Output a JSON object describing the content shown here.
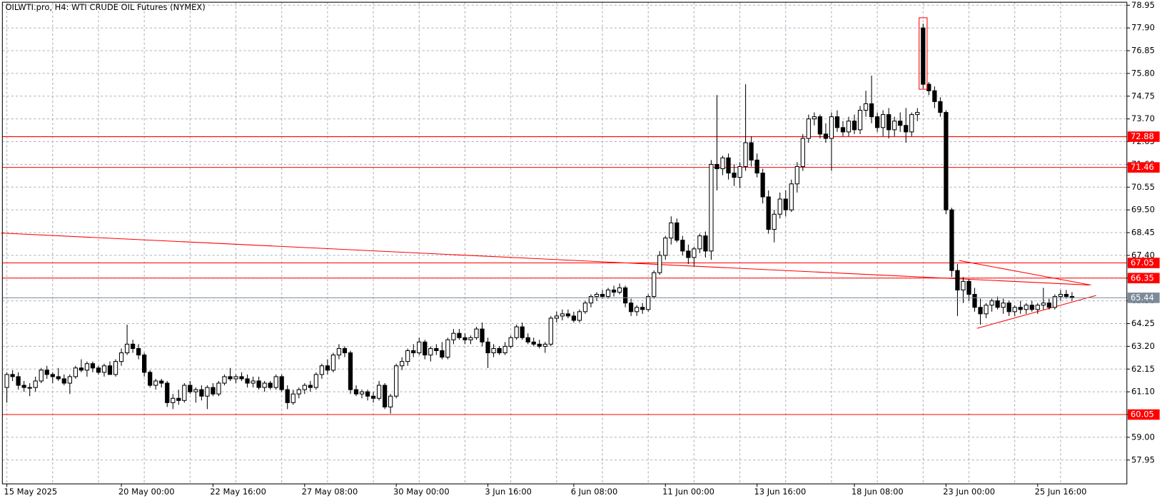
{
  "chart_data": {
    "type": "candlestick",
    "title": "OILWTI.pro, H4:  WTI CRUDE OIL Futures (NYMEX)",
    "up_color": "#ffffff",
    "down_color": "#000000",
    "outline_color": "#000000",
    "line_color": "#ff0000",
    "last_price_color": "#7d8a9a",
    "grid": true,
    "ylim": [
      56.85,
      79.19
    ],
    "yticks": [
      78.95,
      {
        "value": 77.9,
        "label": "77.90"
      },
      76.85,
      {
        "value": 75.8,
        "label": "75.80"
      },
      74.75,
      {
        "value": 73.7,
        "label": "73.70"
      },
      72.65,
      {
        "value": 71.6,
        "label": "71.60"
      },
      70.55,
      {
        "value": 69.5,
        "label": "69.50"
      },
      68.45,
      {
        "value": 67.4,
        "label": "67.40"
      },
      66.35,
      {
        "value": 65.3,
        "label": "65.30"
      },
      64.25,
      {
        "value": 63.2,
        "label": "63.20"
      },
      62.15,
      {
        "value": 61.1,
        "label": "61.10"
      },
      60.05,
      {
        "value": 59.0,
        "label": "59.00"
      },
      57.95
    ],
    "hlines": [
      72.88,
      71.46,
      67.05,
      66.35,
      60.05
    ],
    "last_price": 65.44,
    "trendlines": [
      {
        "x": [
          -1,
          189
        ],
        "y": [
          68.43,
          66.03
        ]
      },
      {
        "x": [
          166.3,
          189.3
        ],
        "y": [
          67.16,
          66.03
        ]
      },
      {
        "x": [
          169.4,
          190.2
        ],
        "y": [
          64.03,
          65.55
        ]
      }
    ],
    "rectangles": [
      {
        "x": [
          159.3,
          160.7
        ],
        "y": [
          75.07,
          78.37
        ]
      }
    ],
    "categories": [
      "15 May 2025",
      null,
      null,
      null,
      null,
      null,
      null,
      null,
      null,
      null,
      null,
      null,
      null,
      null,
      null,
      null,
      null,
      null,
      null,
      null,
      "20 May 00:00",
      null,
      null,
      null,
      null,
      null,
      null,
      null,
      null,
      null,
      null,
      null,
      null,
      null,
      null,
      null,
      "22 May 16:00",
      null,
      null,
      null,
      null,
      null,
      null,
      null,
      null,
      null,
      null,
      null,
      null,
      null,
      null,
      null,
      "27 May 08:00",
      null,
      null,
      null,
      null,
      null,
      null,
      null,
      null,
      null,
      null,
      null,
      null,
      null,
      null,
      null,
      "30 May 00:00",
      null,
      null,
      null,
      null,
      null,
      null,
      null,
      null,
      null,
      null,
      null,
      null,
      null,
      null,
      null,
      "3 Jun 16:00",
      null,
      null,
      null,
      null,
      null,
      null,
      null,
      null,
      null,
      null,
      null,
      null,
      null,
      null,
      "6 Jun 08:00",
      null,
      null,
      null,
      null,
      null,
      null,
      null,
      null,
      null,
      null,
      null,
      null,
      null,
      null,
      null,
      "11 Jun 00:00",
      null,
      null,
      null,
      null,
      null,
      null,
      null,
      null,
      null,
      null,
      null,
      null,
      null,
      null,
      null,
      "13 Jun 16:00",
      null,
      null,
      null,
      null,
      null,
      null,
      null,
      null,
      null,
      null,
      null,
      null,
      null,
      null,
      null,
      null,
      "18 Jun 08:00",
      null,
      null,
      null,
      null,
      null,
      null,
      null,
      null,
      null,
      null,
      null,
      null,
      null,
      null,
      null,
      "23 Jun 00:00",
      null,
      null,
      null,
      null,
      null,
      null,
      null,
      null,
      null,
      null,
      null,
      null,
      null,
      null,
      null,
      "25 Jun 16:00",
      null,
      null,
      null,
      null,
      null,
      null
    ],
    "candles": [
      [
        61.3,
        62.0,
        60.6,
        61.9
      ],
      [
        61.9,
        62.1,
        61.6,
        61.8
      ],
      [
        61.8,
        62.0,
        61.2,
        61.4
      ],
      [
        61.4,
        61.6,
        61.1,
        61.3
      ],
      [
        61.3,
        61.5,
        60.9,
        61.3
      ],
      [
        61.3,
        61.8,
        61.1,
        61.6
      ],
      [
        61.6,
        62.2,
        61.5,
        62.1
      ],
      [
        62.1,
        62.3,
        61.7,
        61.9
      ],
      [
        61.9,
        62.0,
        61.5,
        61.8
      ],
      [
        61.8,
        62.2,
        61.6,
        61.7
      ],
      [
        61.7,
        61.9,
        61.4,
        61.5
      ],
      [
        61.5,
        61.9,
        61.0,
        61.8
      ],
      [
        61.8,
        62.3,
        61.7,
        62.2
      ],
      [
        62.2,
        62.6,
        62.0,
        62.1
      ],
      [
        62.1,
        62.5,
        61.8,
        62.4
      ],
      [
        62.4,
        62.5,
        62.0,
        62.2
      ],
      [
        62.2,
        62.3,
        61.9,
        62.0
      ],
      [
        62.0,
        62.4,
        61.8,
        62.3
      ],
      [
        62.3,
        62.5,
        61.9,
        61.9
      ],
      [
        61.9,
        62.6,
        61.8,
        62.5
      ],
      [
        62.5,
        63.1,
        62.3,
        62.9
      ],
      [
        62.9,
        64.2,
        62.8,
        63.3
      ],
      [
        63.3,
        63.5,
        62.9,
        63.1
      ],
      [
        63.1,
        63.3,
        62.6,
        62.8
      ],
      [
        62.8,
        62.9,
        61.8,
        62.0
      ],
      [
        62.0,
        62.1,
        61.3,
        61.4
      ],
      [
        61.4,
        61.7,
        61.2,
        61.6
      ],
      [
        61.6,
        61.7,
        61.3,
        61.5
      ],
      [
        61.5,
        61.6,
        60.4,
        60.6
      ],
      [
        60.6,
        61.0,
        60.3,
        60.8
      ],
      [
        60.8,
        61.2,
        60.5,
        60.7
      ],
      [
        60.7,
        61.5,
        60.6,
        61.4
      ],
      [
        61.4,
        61.6,
        61.0,
        61.1
      ],
      [
        61.1,
        61.3,
        60.6,
        61.2
      ],
      [
        61.2,
        61.4,
        60.7,
        60.9
      ],
      [
        60.9,
        61.4,
        60.3,
        61.3
      ],
      [
        61.3,
        61.5,
        60.9,
        61.0
      ],
      [
        61.0,
        61.6,
        60.9,
        61.5
      ],
      [
        61.5,
        61.9,
        61.4,
        61.8
      ],
      [
        61.8,
        62.2,
        61.6,
        61.7
      ],
      [
        61.7,
        61.9,
        61.5,
        61.8
      ],
      [
        61.8,
        62.0,
        61.6,
        61.7
      ],
      [
        61.7,
        61.9,
        61.3,
        61.5
      ],
      [
        61.5,
        61.8,
        61.3,
        61.6
      ],
      [
        61.6,
        61.8,
        61.2,
        61.3
      ],
      [
        61.3,
        61.6,
        61.1,
        61.5
      ],
      [
        61.5,
        61.6,
        61.2,
        61.3
      ],
      [
        61.3,
        61.9,
        61.2,
        61.8
      ],
      [
        61.8,
        61.9,
        61.1,
        61.2
      ],
      [
        61.2,
        61.4,
        60.3,
        60.6
      ],
      [
        60.6,
        61.2,
        60.5,
        61.0
      ],
      [
        61.0,
        61.3,
        60.8,
        61.2
      ],
      [
        61.2,
        61.5,
        61.0,
        61.4
      ],
      [
        61.4,
        61.6,
        61.1,
        61.3
      ],
      [
        61.3,
        62.0,
        61.2,
        61.9
      ],
      [
        61.9,
        62.4,
        61.7,
        62.3
      ],
      [
        62.3,
        62.6,
        61.9,
        62.1
      ],
      [
        62.1,
        62.9,
        62.0,
        62.8
      ],
      [
        62.8,
        63.3,
        62.6,
        63.1
      ],
      [
        63.1,
        63.2,
        62.7,
        62.9
      ],
      [
        62.9,
        63.0,
        61.0,
        61.2
      ],
      [
        61.2,
        61.4,
        60.9,
        61.0
      ],
      [
        61.0,
        61.2,
        60.8,
        61.1
      ],
      [
        61.1,
        61.2,
        60.7,
        60.9
      ],
      [
        60.9,
        61.1,
        60.6,
        60.8
      ],
      [
        60.8,
        61.6,
        60.7,
        61.4
      ],
      [
        61.4,
        61.5,
        60.3,
        60.4
      ],
      [
        60.4,
        61.0,
        60.1,
        60.9
      ],
      [
        60.9,
        62.4,
        60.8,
        62.3
      ],
      [
        62.3,
        62.7,
        62.1,
        62.5
      ],
      [
        62.5,
        63.1,
        62.3,
        63.0
      ],
      [
        63.0,
        63.3,
        62.7,
        62.9
      ],
      [
        62.9,
        63.6,
        62.8,
        63.4
      ],
      [
        63.4,
        63.5,
        62.6,
        62.8
      ],
      [
        62.8,
        63.2,
        62.5,
        63.1
      ],
      [
        63.1,
        63.3,
        62.8,
        63.0
      ],
      [
        63.0,
        63.4,
        62.6,
        62.7
      ],
      [
        62.7,
        63.6,
        62.6,
        63.5
      ],
      [
        63.5,
        64.0,
        63.3,
        63.8
      ],
      [
        63.8,
        64.0,
        63.5,
        63.6
      ],
      [
        63.6,
        63.8,
        63.3,
        63.5
      ],
      [
        63.5,
        63.7,
        63.3,
        63.6
      ],
      [
        63.6,
        64.1,
        63.5,
        64.0
      ],
      [
        64.0,
        64.3,
        63.2,
        63.4
      ],
      [
        63.4,
        63.6,
        62.2,
        62.9
      ],
      [
        62.9,
        63.3,
        62.7,
        63.1
      ],
      [
        63.1,
        63.2,
        62.8,
        62.9
      ],
      [
        62.9,
        63.4,
        62.8,
        63.2
      ],
      [
        63.2,
        63.7,
        63.1,
        63.6
      ],
      [
        63.6,
        64.2,
        63.5,
        64.1
      ],
      [
        64.1,
        64.3,
        63.5,
        63.6
      ],
      [
        63.6,
        63.8,
        63.3,
        63.4
      ],
      [
        63.4,
        63.6,
        63.2,
        63.3
      ],
      [
        63.3,
        63.5,
        63.1,
        63.2
      ],
      [
        63.2,
        63.4,
        62.9,
        63.3
      ],
      [
        63.3,
        64.6,
        63.2,
        64.5
      ],
      [
        64.5,
        64.8,
        64.3,
        64.6
      ],
      [
        64.6,
        64.9,
        64.4,
        64.7
      ],
      [
        64.7,
        64.9,
        64.5,
        64.6
      ],
      [
        64.6,
        64.8,
        64.3,
        64.4
      ],
      [
        64.4,
        64.9,
        64.3,
        64.8
      ],
      [
        64.8,
        65.3,
        64.7,
        65.2
      ],
      [
        65.2,
        65.6,
        65.0,
        65.5
      ],
      [
        65.5,
        65.7,
        65.3,
        65.6
      ],
      [
        65.6,
        65.8,
        65.4,
        65.5
      ],
      [
        65.5,
        65.9,
        65.4,
        65.8
      ],
      [
        65.8,
        66.0,
        65.5,
        65.7
      ],
      [
        65.7,
        66.1,
        65.6,
        65.9
      ],
      [
        65.9,
        66.0,
        65.0,
        65.2
      ],
      [
        65.2,
        65.4,
        64.6,
        64.8
      ],
      [
        64.8,
        65.1,
        64.6,
        65.0
      ],
      [
        65.0,
        65.2,
        64.7,
        64.9
      ],
      [
        64.9,
        65.6,
        64.8,
        65.5
      ],
      [
        65.5,
        66.7,
        65.4,
        66.6
      ],
      [
        66.6,
        67.6,
        66.5,
        67.4
      ],
      [
        67.4,
        68.3,
        67.2,
        68.2
      ],
      [
        68.2,
        69.2,
        67.9,
        68.9
      ],
      [
        68.9,
        69.1,
        68.0,
        68.1
      ],
      [
        68.1,
        68.3,
        67.4,
        67.6
      ],
      [
        67.6,
        67.9,
        67.0,
        67.3
      ],
      [
        67.3,
        67.8,
        66.9,
        67.7
      ],
      [
        67.7,
        68.4,
        67.5,
        68.3
      ],
      [
        68.3,
        68.5,
        67.3,
        67.6
      ],
      [
        67.6,
        71.8,
        67.2,
        71.6
      ],
      [
        71.6,
        74.8,
        70.4,
        71.4
      ],
      [
        71.4,
        72.0,
        71.1,
        71.9
      ],
      [
        71.9,
        72.1,
        70.9,
        71.2
      ],
      [
        71.2,
        71.6,
        70.6,
        71.0
      ],
      [
        71.0,
        71.7,
        70.5,
        71.5
      ],
      [
        71.5,
        75.3,
        71.3,
        72.6
      ],
      [
        72.6,
        72.9,
        71.5,
        71.8
      ],
      [
        71.8,
        72.1,
        71.0,
        71.2
      ],
      [
        71.2,
        71.4,
        69.8,
        70.1
      ],
      [
        70.1,
        70.4,
        68.4,
        68.6
      ],
      [
        68.6,
        69.5,
        68.0,
        69.3
      ],
      [
        69.3,
        70.3,
        69.1,
        70.0
      ],
      [
        70.0,
        70.4,
        69.2,
        69.5
      ],
      [
        69.5,
        70.9,
        69.4,
        70.7
      ],
      [
        70.7,
        71.7,
        70.3,
        71.5
      ],
      [
        71.5,
        73.0,
        71.3,
        72.8
      ],
      [
        72.8,
        73.9,
        72.6,
        73.7
      ],
      [
        73.7,
        74.0,
        73.4,
        73.8
      ],
      [
        73.8,
        73.9,
        72.8,
        73.0
      ],
      [
        73.0,
        73.5,
        72.6,
        72.8
      ],
      [
        72.8,
        74.0,
        71.3,
        73.8
      ],
      [
        73.8,
        74.1,
        73.1,
        73.3
      ],
      [
        73.3,
        73.6,
        72.9,
        73.1
      ],
      [
        73.1,
        73.8,
        72.9,
        73.6
      ],
      [
        73.6,
        73.9,
        73.0,
        73.2
      ],
      [
        73.2,
        74.3,
        73.0,
        74.1
      ],
      [
        74.1,
        75.0,
        73.8,
        74.4
      ],
      [
        74.4,
        75.7,
        73.5,
        73.8
      ],
      [
        73.8,
        74.0,
        73.1,
        73.3
      ],
      [
        73.3,
        74.1,
        72.9,
        73.9
      ],
      [
        73.9,
        74.2,
        72.8,
        73.2
      ],
      [
        73.2,
        73.8,
        72.9,
        73.6
      ],
      [
        73.6,
        74.0,
        73.1,
        73.4
      ],
      [
        73.4,
        74.2,
        72.6,
        73.1
      ],
      [
        73.1,
        74.0,
        72.9,
        73.9
      ],
      [
        73.9,
        74.2,
        73.6,
        74.0
      ],
      [
        77.9,
        78.1,
        75.1,
        75.3
      ],
      [
        75.3,
        75.4,
        74.8,
        75.0
      ],
      [
        75.0,
        75.2,
        74.2,
        74.5
      ],
      [
        74.5,
        74.7,
        73.8,
        74.0
      ],
      [
        74.0,
        74.1,
        69.3,
        69.5
      ],
      [
        69.5,
        69.6,
        66.4,
        66.7
      ],
      [
        66.7,
        67.0,
        64.6,
        65.8
      ],
      [
        65.8,
        66.4,
        65.2,
        66.2
      ],
      [
        66.2,
        66.3,
        65.3,
        65.6
      ],
      [
        65.6,
        65.9,
        64.8,
        65.0
      ],
      [
        65.0,
        65.4,
        64.2,
        64.7
      ],
      [
        64.7,
        65.2,
        64.5,
        65.1
      ],
      [
        65.1,
        65.4,
        64.8,
        65.3
      ],
      [
        65.3,
        65.5,
        64.9,
        65.0
      ],
      [
        65.0,
        65.4,
        64.7,
        65.2
      ],
      [
        65.2,
        65.3,
        64.6,
        64.8
      ],
      [
        64.8,
        65.1,
        64.6,
        65.0
      ],
      [
        65.0,
        65.3,
        64.7,
        64.9
      ],
      [
        64.9,
        65.2,
        64.7,
        65.1
      ],
      [
        65.1,
        65.3,
        64.8,
        64.9
      ],
      [
        64.9,
        65.2,
        64.7,
        65.1
      ],
      [
        65.1,
        65.9,
        64.9,
        65.2
      ],
      [
        65.2,
        65.4,
        64.9,
        65.0
      ],
      [
        65.0,
        65.6,
        64.9,
        65.5
      ],
      [
        65.5,
        65.8,
        65.3,
        65.6
      ],
      [
        65.6,
        65.8,
        65.4,
        65.5
      ],
      [
        65.5,
        65.7,
        65.3,
        65.44
      ]
    ]
  }
}
